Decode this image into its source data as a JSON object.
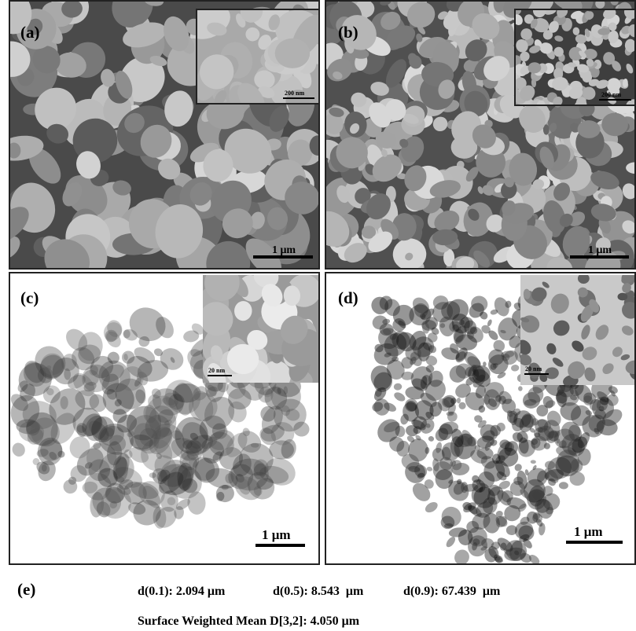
{
  "panels": [
    {
      "label": "(a)",
      "scale": "1 μm",
      "inset_scale": "200 nm"
    },
    {
      "label": "(b)",
      "scale": "1 μm",
      "inset_scale": "200 nm"
    },
    {
      "label": "(c)",
      "scale": "1 μm",
      "inset_scale": "20 nm"
    },
    {
      "label": "(d)",
      "scale": "1 μm",
      "inset_scale": "20 nm"
    }
  ],
  "summary": {
    "label": "(e)",
    "stats": [
      "d(0.1): 2.094 μm",
      "d(0.5): 8.543  μm",
      "d(0.9): 67.439  μm"
    ],
    "mean": "Surface Weighted Mean D[3,2]: 4.050 μm"
  }
}
